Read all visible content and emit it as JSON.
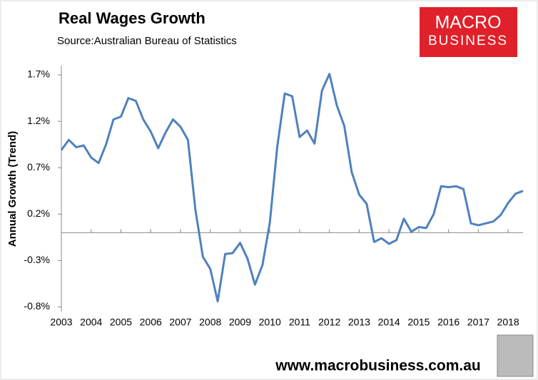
{
  "chart_data": {
    "type": "line",
    "title": "Real Wages Growth",
    "subtitle": "Source:Australian Bureau of Statistics",
    "ylabel": "Annual Growth (Trend)",
    "logo": [
      "MACRO",
      "BUSINESS"
    ],
    "footer": "www.macrobusiness.com.au",
    "x": [
      2003,
      2003.25,
      2003.5,
      2003.75,
      2004,
      2004.25,
      2004.5,
      2004.75,
      2005,
      2005.25,
      2005.5,
      2005.75,
      2006,
      2006.25,
      2006.5,
      2006.75,
      2007,
      2007.25,
      2007.5,
      2007.75,
      2008,
      2008.25,
      2008.5,
      2008.75,
      2009,
      2009.25,
      2009.5,
      2009.75,
      2010,
      2010.25,
      2010.5,
      2010.75,
      2011,
      2011.25,
      2011.5,
      2011.75,
      2012,
      2012.25,
      2012.5,
      2012.75,
      2013,
      2013.25,
      2013.5,
      2013.75,
      2014,
      2014.25,
      2014.5,
      2014.75,
      2015,
      2015.25,
      2015.5,
      2015.75,
      2016,
      2016.25,
      2016.5,
      2016.75,
      2017,
      2017.25,
      2017.5,
      2017.75,
      2018,
      2018.25,
      2018.5
    ],
    "series": [
      {
        "name": "Real Wages Growth",
        "color": "#4f81bd",
        "values": [
          0.89,
          1.0,
          0.92,
          0.94,
          0.81,
          0.75,
          0.95,
          1.22,
          1.25,
          1.45,
          1.42,
          1.22,
          1.09,
          0.91,
          1.08,
          1.22,
          1.14,
          1.0,
          0.25,
          -0.26,
          -0.39,
          -0.74,
          -0.23,
          -0.22,
          -0.11,
          -0.28,
          -0.56,
          -0.35,
          0.11,
          0.93,
          1.5,
          1.47,
          1.03,
          1.1,
          0.96,
          1.53,
          1.71,
          1.37,
          1.15,
          0.65,
          0.41,
          0.31,
          -0.1,
          -0.06,
          -0.12,
          -0.08,
          0.15,
          0.01,
          0.06,
          0.05,
          0.2,
          0.5,
          0.49,
          0.5,
          0.47,
          0.1,
          0.08,
          0.1,
          0.12,
          0.19,
          0.32,
          0.42,
          0.45
        ]
      }
    ],
    "xlim": [
      2003,
      2018.5
    ],
    "xticks": [
      2003,
      2004,
      2005,
      2006,
      2007,
      2008,
      2009,
      2010,
      2011,
      2012,
      2013,
      2014,
      2015,
      2016,
      2017,
      2018
    ],
    "ylim": [
      -0.85,
      1.8
    ],
    "yticks": [
      {
        "value": 1.7,
        "label": "1.7%"
      },
      {
        "value": 1.2,
        "label": "1.2%"
      },
      {
        "value": 0.7,
        "label": "0.7%"
      },
      {
        "value": 0.2,
        "label": "0.2%"
      },
      {
        "value": -0.3,
        "label": "-0.3%"
      },
      {
        "value": -0.8,
        "label": "-0.8%"
      }
    ],
    "grid": false
  }
}
